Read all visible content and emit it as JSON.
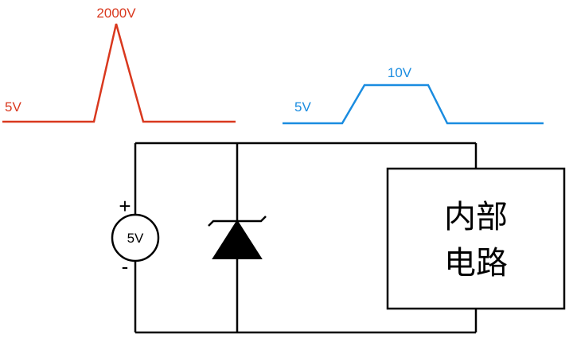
{
  "surge_waveform": {
    "baseline_label": "5V",
    "peak_label": "2000V",
    "color": "#d9381e"
  },
  "clamped_waveform": {
    "baseline_label": "5V",
    "peak_label": "10V",
    "color": "#1a8ce0"
  },
  "circuit": {
    "source_label": "5V",
    "plus_sign": "+",
    "minus_sign": "-",
    "component": "tvs-diode",
    "internal_block_line1": "内部",
    "internal_block_line2": "电路"
  }
}
